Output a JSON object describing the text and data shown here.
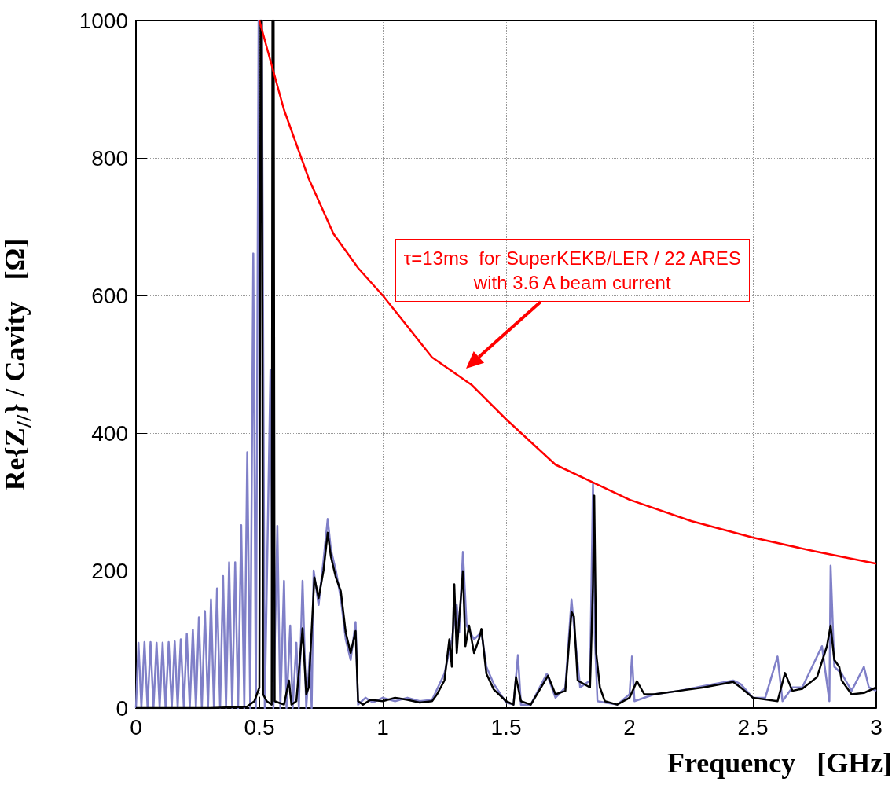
{
  "chart_data": {
    "type": "line",
    "xlabel": "Frequency   [GHz]",
    "ylabel": "Re{Z$_{//}$} / Cavity   [Ω]",
    "xlim": [
      0,
      3
    ],
    "ylim": [
      0,
      1000
    ],
    "xticks": [
      0,
      0.5,
      1,
      1.5,
      2,
      2.5,
      3
    ],
    "yticks": [
      0,
      200,
      400,
      600,
      800,
      1000
    ],
    "grid": true,
    "marker": "none",
    "line_style": "solid",
    "series": [
      {
        "color": "#8080c8",
        "x": [
          0,
          0.01,
          0.022,
          0.0345,
          0.047,
          0.059,
          0.071,
          0.0835,
          0.096,
          0.108,
          0.12,
          0.1325,
          0.145,
          0.157,
          0.169,
          0.1815,
          0.194,
          0.206,
          0.218,
          0.2305,
          0.243,
          0.255,
          0.267,
          0.2795,
          0.292,
          0.304,
          0.316,
          0.3285,
          0.341,
          0.353,
          0.365,
          0.3775,
          0.39,
          0.402,
          0.414,
          0.4265,
          0.439,
          0.451,
          0.463,
          0.4755,
          0.486,
          0.497,
          0.51,
          0.522,
          0.545,
          0.557,
          0.573,
          0.585,
          0.6,
          0.61,
          0.625,
          0.635,
          0.65,
          0.66,
          0.675,
          0.69,
          0.705,
          0.712,
          0.72,
          0.74,
          0.76,
          0.777,
          0.79,
          0.81,
          0.83,
          0.85,
          0.87,
          0.89,
          0.9,
          0.93,
          0.96,
          1.0,
          1.05,
          1.1,
          1.15,
          1.2,
          1.25,
          1.28,
          1.3,
          1.31,
          1.325,
          1.34,
          1.37,
          1.4,
          1.42,
          1.45,
          1.5,
          1.53,
          1.548,
          1.56,
          1.6,
          1.665,
          1.7,
          1.74,
          1.765,
          1.78,
          1.8,
          1.84,
          1.852,
          1.86,
          1.87,
          1.9,
          1.95,
          2.0,
          2.01,
          2.02,
          2.1,
          2.2,
          2.3,
          2.42,
          2.45,
          2.5,
          2.55,
          2.6,
          2.62,
          2.66,
          2.7,
          2.78,
          2.81,
          2.815,
          2.83,
          2.86,
          2.9,
          2.95,
          2.97,
          3.0
        ],
        "values": [
          0,
          95,
          0,
          96,
          0,
          96,
          0,
          95,
          0,
          95,
          0,
          96,
          0,
          97,
          0,
          100,
          0,
          108,
          0,
          114,
          0,
          132,
          0,
          141,
          0,
          158,
          0,
          174,
          0,
          192,
          0,
          212,
          0,
          212,
          0,
          266,
          0,
          372,
          0,
          661,
          0,
          1000,
          1000,
          0,
          492,
          0,
          265,
          0,
          185,
          0,
          120,
          0,
          95,
          0,
          185,
          0,
          80,
          0,
          200,
          150,
          215,
          275,
          230,
          200,
          160,
          100,
          70,
          125,
          5,
          15,
          8,
          15,
          10,
          15,
          10,
          12,
          50,
          100,
          150,
          110,
          227,
          120,
          100,
          110,
          60,
          35,
          8,
          5,
          77,
          5,
          5,
          50,
          15,
          30,
          158,
          100,
          30,
          40,
          327,
          100,
          10,
          8,
          5,
          20,
          75,
          10,
          20,
          25,
          32,
          40,
          35,
          15,
          15,
          75,
          10,
          30,
          30,
          90,
          10,
          207,
          60,
          50,
          25,
          60,
          30,
          25
        ]
      },
      {
        "color": "#000000",
        "x": [
          0,
          0.3,
          0.45,
          0.48,
          0.5,
          0.505,
          0.51,
          0.515,
          0.53,
          0.55,
          0.553,
          0.558,
          0.562,
          0.6,
          0.62,
          0.63,
          0.65,
          0.675,
          0.69,
          0.7,
          0.723,
          0.74,
          0.76,
          0.777,
          0.79,
          0.81,
          0.83,
          0.85,
          0.87,
          0.89,
          0.9,
          0.92,
          0.95,
          1.0,
          1.05,
          1.1,
          1.15,
          1.2,
          1.22,
          1.25,
          1.27,
          1.28,
          1.29,
          1.3,
          1.31,
          1.325,
          1.335,
          1.35,
          1.37,
          1.39,
          1.4,
          1.42,
          1.45,
          1.5,
          1.53,
          1.54,
          1.56,
          1.6,
          1.67,
          1.7,
          1.74,
          1.765,
          1.775,
          1.79,
          1.84,
          1.852,
          1.857,
          1.865,
          1.88,
          1.9,
          1.95,
          2.0,
          2.03,
          2.06,
          2.1,
          2.2,
          2.3,
          2.42,
          2.45,
          2.5,
          2.6,
          2.63,
          2.66,
          2.7,
          2.76,
          2.8,
          2.815,
          2.83,
          2.85,
          2.86,
          2.9,
          2.95,
          3.0
        ],
        "values": [
          0,
          0,
          2,
          10,
          30,
          1000,
          1000,
          20,
          10,
          5,
          1000,
          1000,
          10,
          5,
          40,
          5,
          10,
          116,
          20,
          30,
          190,
          160,
          200,
          255,
          220,
          190,
          170,
          110,
          80,
          112,
          10,
          5,
          12,
          10,
          15,
          12,
          8,
          10,
          20,
          40,
          100,
          60,
          180,
          80,
          130,
          199,
          90,
          120,
          80,
          100,
          115,
          50,
          27,
          10,
          5,
          45,
          10,
          5,
          47,
          20,
          25,
          140,
          133,
          40,
          30,
          180,
          309,
          80,
          30,
          10,
          5,
          15,
          39,
          20,
          20,
          25,
          30,
          38,
          30,
          15,
          10,
          51,
          25,
          28,
          45,
          90,
          120,
          70,
          60,
          40,
          20,
          22,
          30
        ]
      },
      {
        "color": "#ff0000",
        "x": [
          0.5,
          0.6,
          0.7,
          0.8,
          0.9,
          1.0,
          1.2,
          1.36,
          1.5,
          1.7,
          2.0,
          2.25,
          2.5,
          2.75,
          3.0
        ],
        "values": [
          1000,
          870,
          770,
          690,
          640,
          600,
          510,
          470,
          420,
          354,
          303,
          272,
          248,
          228,
          210
        ]
      }
    ],
    "annotations": [
      "τ=13ms  for SuperKEKB/LER / 22 ARES\nwith 3.6 A beam current"
    ]
  }
}
